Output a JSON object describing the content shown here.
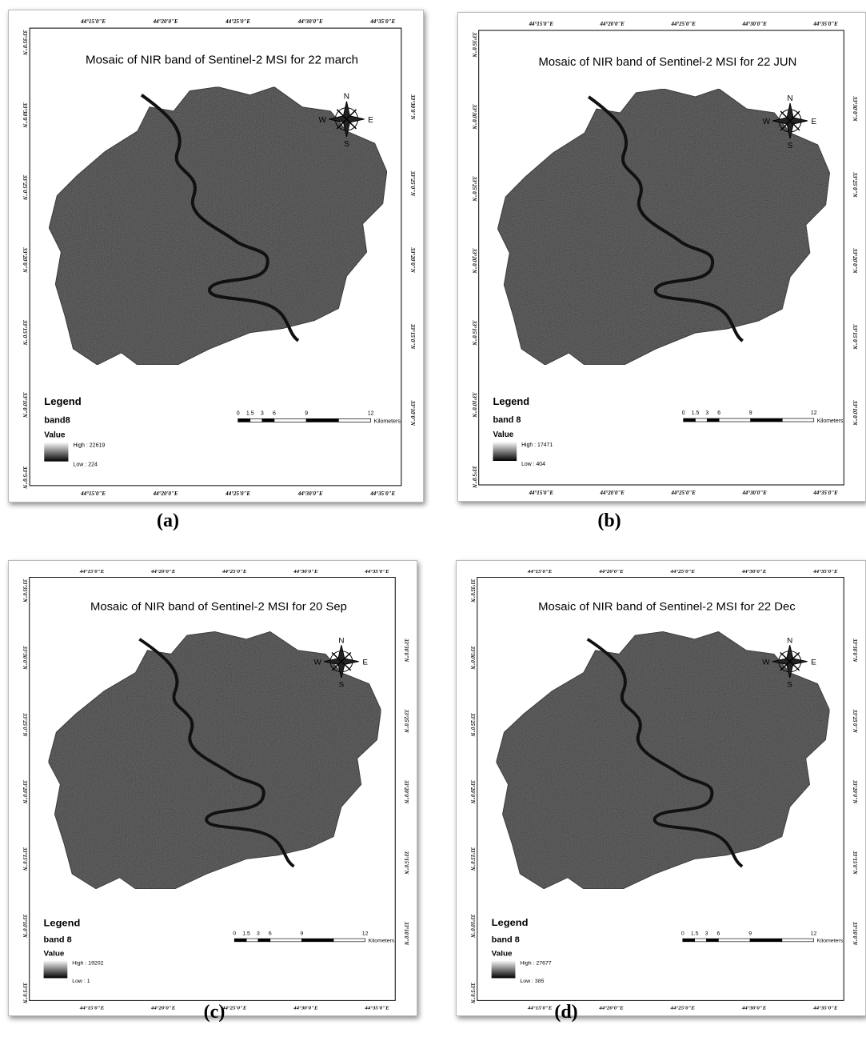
{
  "panels": [
    {
      "caption": "(a)",
      "title": "Mosaic of NIR band of Sentinel-2 MSI for 22 march",
      "top_labels": [
        "44°15'0\"E",
        "44°20'0\"E",
        "44°25'0\"E",
        "44°30'0\"E",
        "44°35'0\"E"
      ],
      "bottom_labels": [
        "44°15'0\"E",
        "44°20'0\"E",
        "44°25'0\"E",
        "44°30'0\"E",
        "44°35'0\"E"
      ],
      "left_labels": [
        "33°35'0\"N",
        "33°30'0\"N",
        "33°25'0\"N",
        "33°20'0\"N",
        "33°15'0\"N",
        "33°10'0\"N",
        "33°5'0\"N"
      ],
      "right_labels": [
        "33°30'0\"N",
        "33°25'0\"N",
        "33°20'0\"N",
        "33°15'0\"N",
        "33°10'0\"N"
      ],
      "legend": {
        "title": "Legend",
        "band": "band8",
        "value": "Value",
        "high": "High : 22619",
        "low": "Low : 224"
      },
      "scale": {
        "ticks": [
          "0",
          "1.5",
          "3",
          "6",
          "9",
          "12"
        ],
        "unit": "Kilometers"
      },
      "compass": {
        "n": "N",
        "s": "S",
        "e": "E",
        "w": "W"
      }
    },
    {
      "caption": "(b)",
      "title": "Mosaic of NIR band of Sentinel-2 MSI for 22 JUN",
      "top_labels": [
        "44°15'0\"E",
        "44°20'0\"E",
        "44°25'0\"E",
        "44°30'0\"E",
        "44°35'0\"E"
      ],
      "bottom_labels": [
        "44°15'0\"E",
        "44°20'0\"E",
        "44°25'0\"E",
        "44°30'0\"E",
        "44°35'0\"E"
      ],
      "left_labels": [
        "33°35'0\"N",
        "33°30'0\"N",
        "33°25'0\"N",
        "33°20'0\"N",
        "33°15'0\"N",
        "33°10'0\"N",
        "33°5'0\"N"
      ],
      "right_labels": [
        "33°30'0\"N",
        "33°25'0\"N",
        "33°20'0\"N",
        "33°15'0\"N",
        "33°10'0\"N"
      ],
      "legend": {
        "title": "Legend",
        "band": "band 8",
        "value": "Value",
        "high": "High : 17471",
        "low": "Low : 404"
      },
      "scale": {
        "ticks": [
          "0",
          "1.5",
          "3",
          "6",
          "9",
          "12"
        ],
        "unit": "Kilometers"
      },
      "compass": {
        "n": "N",
        "s": "S",
        "e": "E",
        "w": "W"
      }
    },
    {
      "caption": "(c)",
      "title": "Mosaic of NIR band of Sentinel-2 MSI for 20 Sep",
      "top_labels": [
        "44°15'0\"E",
        "44°20'0\"E",
        "44°25'0\"E",
        "44°30'0\"E",
        "44°35'0\"E"
      ],
      "bottom_labels": [
        "44°15'0\"E",
        "44°20'0\"E",
        "44°25'0\"E",
        "44°30'0\"E",
        "44°35'0\"E"
      ],
      "left_labels": [
        "33°35'0\"N",
        "33°30'0\"N",
        "33°25'0\"N",
        "33°20'0\"N",
        "33°15'0\"N",
        "33°10'0\"N",
        "33°5'0\"N"
      ],
      "right_labels": [
        "33°30'0\"N",
        "33°25'0\"N",
        "33°20'0\"N",
        "33°15'0\"N",
        "33°10'0\"N"
      ],
      "legend": {
        "title": "Legend",
        "band": "band 8",
        "value": "Value",
        "high": "High : 19202",
        "low": "Low : 1"
      },
      "scale": {
        "ticks": [
          "0",
          "1.5",
          "3",
          "6",
          "9",
          "12"
        ],
        "unit": "Kilometers"
      },
      "compass": {
        "n": "N",
        "s": "S",
        "e": "E",
        "w": "W"
      }
    },
    {
      "caption": "(d)",
      "title": "Mosaic of NIR band of Sentinel-2 MSI for 22 Dec",
      "top_labels": [
        "44°15'0\"E",
        "44°20'0\"E",
        "44°25'0\"E",
        "44°30'0\"E",
        "44°35'0\"E"
      ],
      "bottom_labels": [
        "44°15'0\"E",
        "44°20'0\"E",
        "44°25'0\"E",
        "44°30'0\"E",
        "44°35'0\"E"
      ],
      "left_labels": [
        "33°35'0\"N",
        "33°30'0\"N",
        "33°25'0\"N",
        "33°20'0\"N",
        "33°15'0\"N",
        "33°10'0\"N",
        "33°5'0\"N"
      ],
      "right_labels": [
        "33°30'0\"N",
        "33°25'0\"N",
        "33°20'0\"N",
        "33°15'0\"N",
        "33°10'0\"N"
      ],
      "legend": {
        "title": "Legend",
        "band": "band 8",
        "value": "Value",
        "high": "High : 27677",
        "low": "Low : 385"
      },
      "scale": {
        "ticks": [
          "0",
          "1.5",
          "3",
          "6",
          "9",
          "12"
        ],
        "unit": "Kilometers"
      },
      "compass": {
        "n": "N",
        "s": "S",
        "e": "E",
        "w": "W"
      }
    }
  ]
}
